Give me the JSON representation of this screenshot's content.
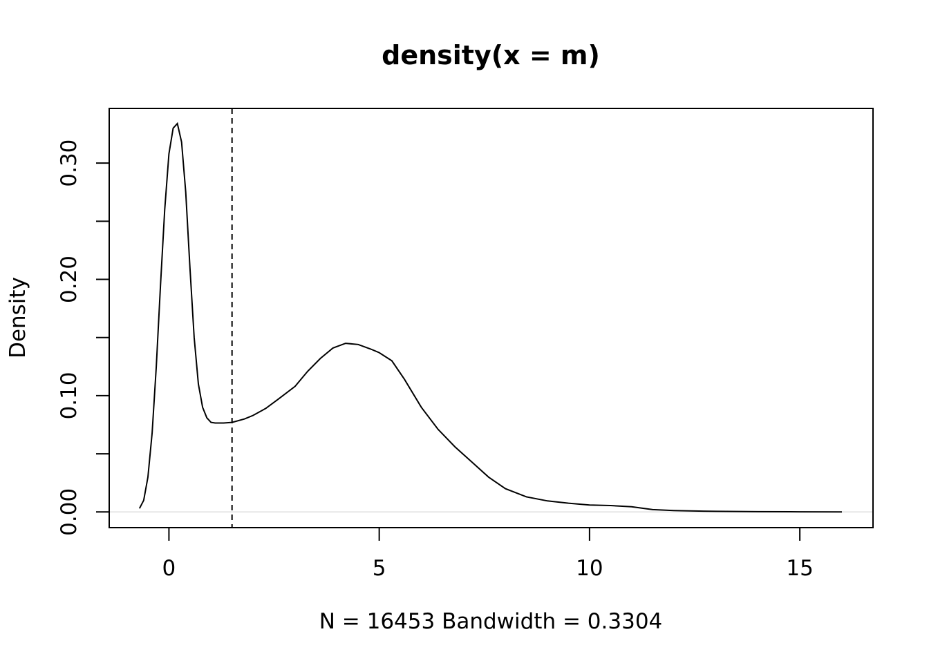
{
  "chart_data": {
    "type": "line",
    "title": "density(x = m)",
    "xlabel": "N = 16453   Bandwidth = 0.3304",
    "ylabel": "Density",
    "xlim": [
      -1.42,
      16.74
    ],
    "ylim": [
      -0.0135,
      0.347
    ],
    "x_ticks": [
      0,
      5,
      10,
      15
    ],
    "x_tick_labels": [
      "0",
      "5",
      "10",
      "15"
    ],
    "y_ticks": [
      0.0,
      0.05,
      0.1,
      0.15,
      0.2,
      0.25,
      0.3
    ],
    "y_tick_labels": [
      "0.00",
      "",
      "0.10",
      "",
      "0.20",
      "",
      "0.30"
    ],
    "grid": false,
    "legend": "none",
    "vline": {
      "x": 1.5,
      "style": "dashed"
    },
    "series": [
      {
        "x": [
          -0.7,
          -0.6,
          -0.5,
          -0.4,
          -0.3,
          -0.2,
          -0.1,
          0.0,
          0.1,
          0.2,
          0.3,
          0.4,
          0.5,
          0.6,
          0.7,
          0.8,
          0.9,
          1.0,
          1.1,
          1.2,
          1.3,
          1.5,
          1.8,
          2.0,
          2.3,
          2.6,
          3.0,
          3.3,
          3.6,
          3.9,
          4.2,
          4.5,
          4.8,
          5.0,
          5.3,
          5.6,
          6.0,
          6.4,
          6.8,
          7.2,
          7.6,
          8.0,
          8.5,
          9.0,
          9.5,
          10.0,
          10.5,
          11.0,
          11.5,
          12.0,
          12.5,
          13.0,
          14.0,
          15.0,
          16.0
        ],
        "y": [
          0.003,
          0.01,
          0.03,
          0.068,
          0.125,
          0.195,
          0.26,
          0.308,
          0.33,
          0.334,
          0.318,
          0.275,
          0.21,
          0.15,
          0.11,
          0.09,
          0.081,
          0.077,
          0.0765,
          0.0765,
          0.0765,
          0.077,
          0.08,
          0.083,
          0.089,
          0.097,
          0.108,
          0.121,
          0.132,
          0.141,
          0.145,
          0.144,
          0.14,
          0.137,
          0.13,
          0.114,
          0.09,
          0.071,
          0.056,
          0.043,
          0.03,
          0.02,
          0.013,
          0.0095,
          0.0075,
          0.006,
          0.0055,
          0.0045,
          0.002,
          0.0012,
          0.0008,
          0.0005,
          0.0002,
          0.0001,
          0.0
        ]
      }
    ]
  }
}
